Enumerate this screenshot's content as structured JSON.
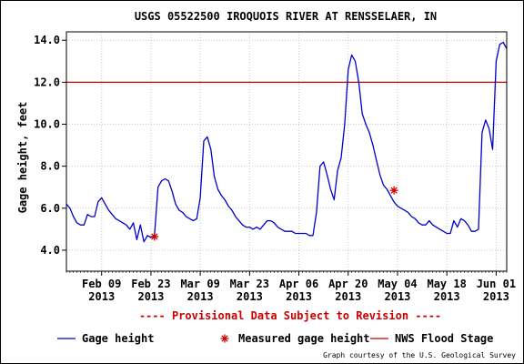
{
  "chart_data": {
    "type": "line",
    "title": "USGS 05522500 IROQUOIS RIVER AT RENSSELAER, IN",
    "ylabel": "Gage height, feet",
    "xlabel": "",
    "ylim": [
      3.0,
      14.4
    ],
    "xlim": [
      "2013-01-30",
      "2013-06-04"
    ],
    "grid": true,
    "y_ticks": [
      "4.0",
      "6.0",
      "8.0",
      "10.0",
      "12.0",
      "14.0"
    ],
    "x_ticks": [
      {
        "date": "2013-02-09",
        "label": "Feb 09",
        "year": "2013"
      },
      {
        "date": "2013-02-23",
        "label": "Feb 23",
        "year": "2013"
      },
      {
        "date": "2013-03-09",
        "label": "Mar 09",
        "year": "2013"
      },
      {
        "date": "2013-03-23",
        "label": "Mar 23",
        "year": "2013"
      },
      {
        "date": "2013-04-06",
        "label": "Apr 06",
        "year": "2013"
      },
      {
        "date": "2013-04-20",
        "label": "Apr 20",
        "year": "2013"
      },
      {
        "date": "2013-05-04",
        "label": "May 04",
        "year": "2013"
      },
      {
        "date": "2013-05-18",
        "label": "May 18",
        "year": "2013"
      },
      {
        "date": "2013-06-01",
        "label": "Jun 01",
        "year": "2013"
      }
    ],
    "series": [
      {
        "name": "Gage height",
        "color": "#0000cc",
        "points": [
          [
            "2013-01-30",
            6.2
          ],
          [
            "2013-01-31",
            6.0
          ],
          [
            "2013-02-01",
            5.6
          ],
          [
            "2013-02-02",
            5.3
          ],
          [
            "2013-02-03",
            5.2
          ],
          [
            "2013-02-04",
            5.2
          ],
          [
            "2013-02-05",
            5.7
          ],
          [
            "2013-02-06",
            5.6
          ],
          [
            "2013-02-07",
            5.6
          ],
          [
            "2013-02-08",
            6.3
          ],
          [
            "2013-02-09",
            6.5
          ],
          [
            "2013-02-10",
            6.2
          ],
          [
            "2013-02-11",
            5.9
          ],
          [
            "2013-02-12",
            5.7
          ],
          [
            "2013-02-13",
            5.5
          ],
          [
            "2013-02-14",
            5.4
          ],
          [
            "2013-02-15",
            5.3
          ],
          [
            "2013-02-16",
            5.2
          ],
          [
            "2013-02-17",
            5.0
          ],
          [
            "2013-02-18",
            5.3
          ],
          [
            "2013-02-19",
            4.5
          ],
          [
            "2013-02-20",
            5.2
          ],
          [
            "2013-02-21",
            4.4
          ],
          [
            "2013-02-22",
            4.7
          ],
          [
            "2013-02-23",
            4.6
          ],
          [
            "2013-02-24",
            4.7
          ],
          [
            "2013-02-25",
            7.0
          ],
          [
            "2013-02-26",
            7.3
          ],
          [
            "2013-02-27",
            7.4
          ],
          [
            "2013-02-28",
            7.3
          ],
          [
            "2013-03-01",
            6.8
          ],
          [
            "2013-03-02",
            6.2
          ],
          [
            "2013-03-03",
            5.9
          ],
          [
            "2013-03-04",
            5.8
          ],
          [
            "2013-03-05",
            5.6
          ],
          [
            "2013-03-06",
            5.5
          ],
          [
            "2013-03-07",
            5.4
          ],
          [
            "2013-03-08",
            5.5
          ],
          [
            "2013-03-09",
            6.5
          ],
          [
            "2013-03-10",
            9.2
          ],
          [
            "2013-03-11",
            9.4
          ],
          [
            "2013-03-12",
            8.8
          ],
          [
            "2013-03-13",
            7.5
          ],
          [
            "2013-03-14",
            6.9
          ],
          [
            "2013-03-15",
            6.6
          ],
          [
            "2013-03-16",
            6.4
          ],
          [
            "2013-03-17",
            6.1
          ],
          [
            "2013-03-18",
            5.9
          ],
          [
            "2013-03-19",
            5.6
          ],
          [
            "2013-03-20",
            5.4
          ],
          [
            "2013-03-21",
            5.2
          ],
          [
            "2013-03-22",
            5.1
          ],
          [
            "2013-03-23",
            5.1
          ],
          [
            "2013-03-24",
            5.0
          ],
          [
            "2013-03-25",
            5.1
          ],
          [
            "2013-03-26",
            5.0
          ],
          [
            "2013-03-27",
            5.2
          ],
          [
            "2013-03-28",
            5.4
          ],
          [
            "2013-03-29",
            5.4
          ],
          [
            "2013-03-30",
            5.3
          ],
          [
            "2013-03-31",
            5.1
          ],
          [
            "2013-04-01",
            5.0
          ],
          [
            "2013-04-02",
            4.9
          ],
          [
            "2013-04-03",
            4.9
          ],
          [
            "2013-04-04",
            4.9
          ],
          [
            "2013-04-05",
            4.8
          ],
          [
            "2013-04-06",
            4.8
          ],
          [
            "2013-04-07",
            4.8
          ],
          [
            "2013-04-08",
            4.8
          ],
          [
            "2013-04-09",
            4.7
          ],
          [
            "2013-04-10",
            4.7
          ],
          [
            "2013-04-11",
            5.8
          ],
          [
            "2013-04-12",
            8.0
          ],
          [
            "2013-04-13",
            8.2
          ],
          [
            "2013-04-14",
            7.6
          ],
          [
            "2013-04-15",
            6.9
          ],
          [
            "2013-04-16",
            6.4
          ],
          [
            "2013-04-17",
            7.8
          ],
          [
            "2013-04-18",
            8.4
          ],
          [
            "2013-04-19",
            10.0
          ],
          [
            "2013-04-20",
            12.6
          ],
          [
            "2013-04-21",
            13.3
          ],
          [
            "2013-04-22",
            13.0
          ],
          [
            "2013-04-23",
            12.0
          ],
          [
            "2013-04-24",
            10.5
          ],
          [
            "2013-04-25",
            10.0
          ],
          [
            "2013-04-26",
            9.6
          ],
          [
            "2013-04-27",
            9.0
          ],
          [
            "2013-04-28",
            8.3
          ],
          [
            "2013-04-29",
            7.6
          ],
          [
            "2013-04-30",
            7.1
          ],
          [
            "2013-05-01",
            6.9
          ],
          [
            "2013-05-02",
            6.6
          ],
          [
            "2013-05-03",
            6.3
          ],
          [
            "2013-05-04",
            6.1
          ],
          [
            "2013-05-05",
            6.0
          ],
          [
            "2013-05-06",
            5.9
          ],
          [
            "2013-05-07",
            5.8
          ],
          [
            "2013-05-08",
            5.6
          ],
          [
            "2013-05-09",
            5.5
          ],
          [
            "2013-05-10",
            5.3
          ],
          [
            "2013-05-11",
            5.2
          ],
          [
            "2013-05-12",
            5.2
          ],
          [
            "2013-05-13",
            5.4
          ],
          [
            "2013-05-14",
            5.2
          ],
          [
            "2013-05-15",
            5.1
          ],
          [
            "2013-05-16",
            5.0
          ],
          [
            "2013-05-17",
            4.9
          ],
          [
            "2013-05-18",
            4.8
          ],
          [
            "2013-05-19",
            4.8
          ],
          [
            "2013-05-20",
            5.4
          ],
          [
            "2013-05-21",
            5.1
          ],
          [
            "2013-05-22",
            5.5
          ],
          [
            "2013-05-23",
            5.4
          ],
          [
            "2013-05-24",
            5.2
          ],
          [
            "2013-05-25",
            4.9
          ],
          [
            "2013-05-26",
            4.9
          ],
          [
            "2013-05-27",
            5.0
          ],
          [
            "2013-05-28",
            9.6
          ],
          [
            "2013-05-29",
            10.2
          ],
          [
            "2013-05-30",
            9.8
          ],
          [
            "2013-05-31",
            8.8
          ],
          [
            "2013-06-01",
            13.0
          ],
          [
            "2013-06-02",
            13.8
          ],
          [
            "2013-06-03",
            13.9
          ],
          [
            "2013-06-04",
            13.6
          ]
        ]
      }
    ],
    "measured": {
      "name": "Measured gage height",
      "color": "#cc0000",
      "points": [
        [
          "2013-02-24",
          4.65
        ],
        [
          "2013-05-03",
          6.85
        ]
      ]
    },
    "flood_stage": {
      "name": "NWS Flood Stage",
      "value": 12.0,
      "color": "#cc0000"
    },
    "annotation": "---- Provisional Data Subject to Revision ----",
    "legend": {
      "placement": "bottom",
      "gage_label": "Gage height",
      "measured_label": "Measured gage height",
      "flood_label": "NWS Flood Stage"
    },
    "credit": "Graph courtesy of the U.S. Geological Survey"
  }
}
